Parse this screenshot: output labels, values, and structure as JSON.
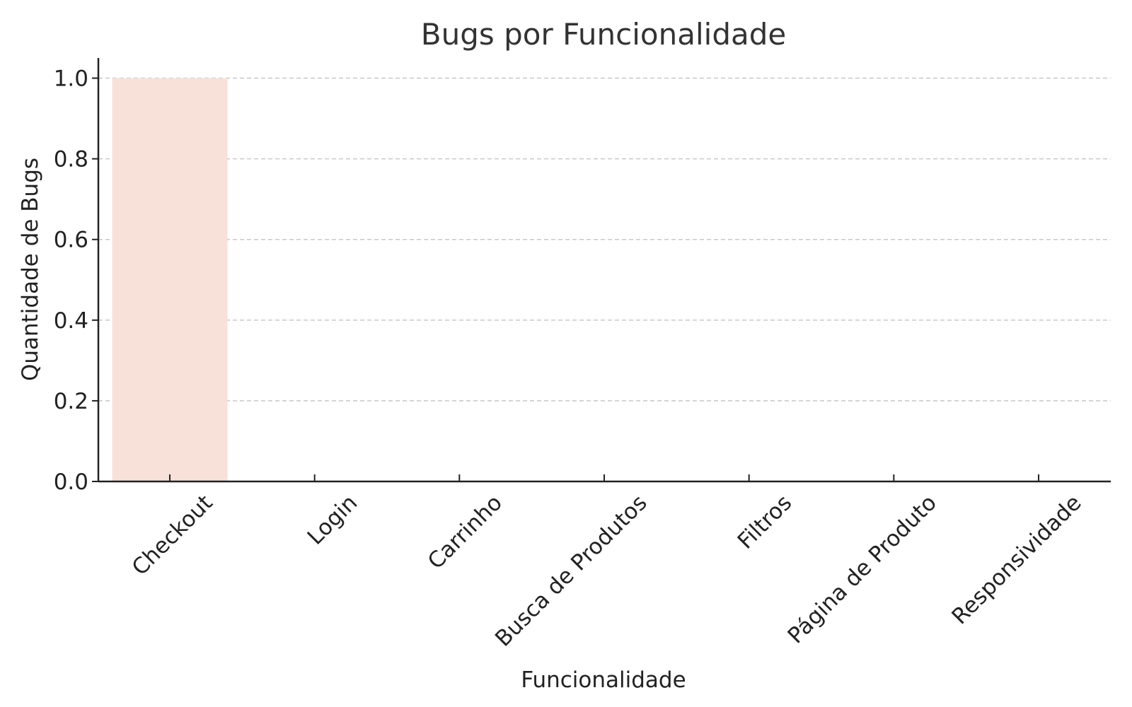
{
  "chart_data": {
    "type": "bar",
    "title": "Bugs por Funcionalidade",
    "xlabel": "Funcionalidade",
    "ylabel": "Quantidade de Bugs",
    "categories": [
      "Checkout",
      "Login",
      "Carrinho",
      "Busca de Produtos",
      "Filtros",
      "Página de Produto",
      "Responsividade"
    ],
    "values": [
      1,
      0,
      0,
      0,
      0,
      0,
      0
    ],
    "ylim": [
      0,
      1.05
    ],
    "yticks": [
      0.0,
      0.2,
      0.4,
      0.6,
      0.8,
      1.0
    ],
    "ytick_labels": [
      "0.0",
      "0.2",
      "0.4",
      "0.6",
      "0.8",
      "1.0"
    ],
    "grid": "y-dashed",
    "bar_color": "#f8e1d8",
    "legend": "none"
  }
}
